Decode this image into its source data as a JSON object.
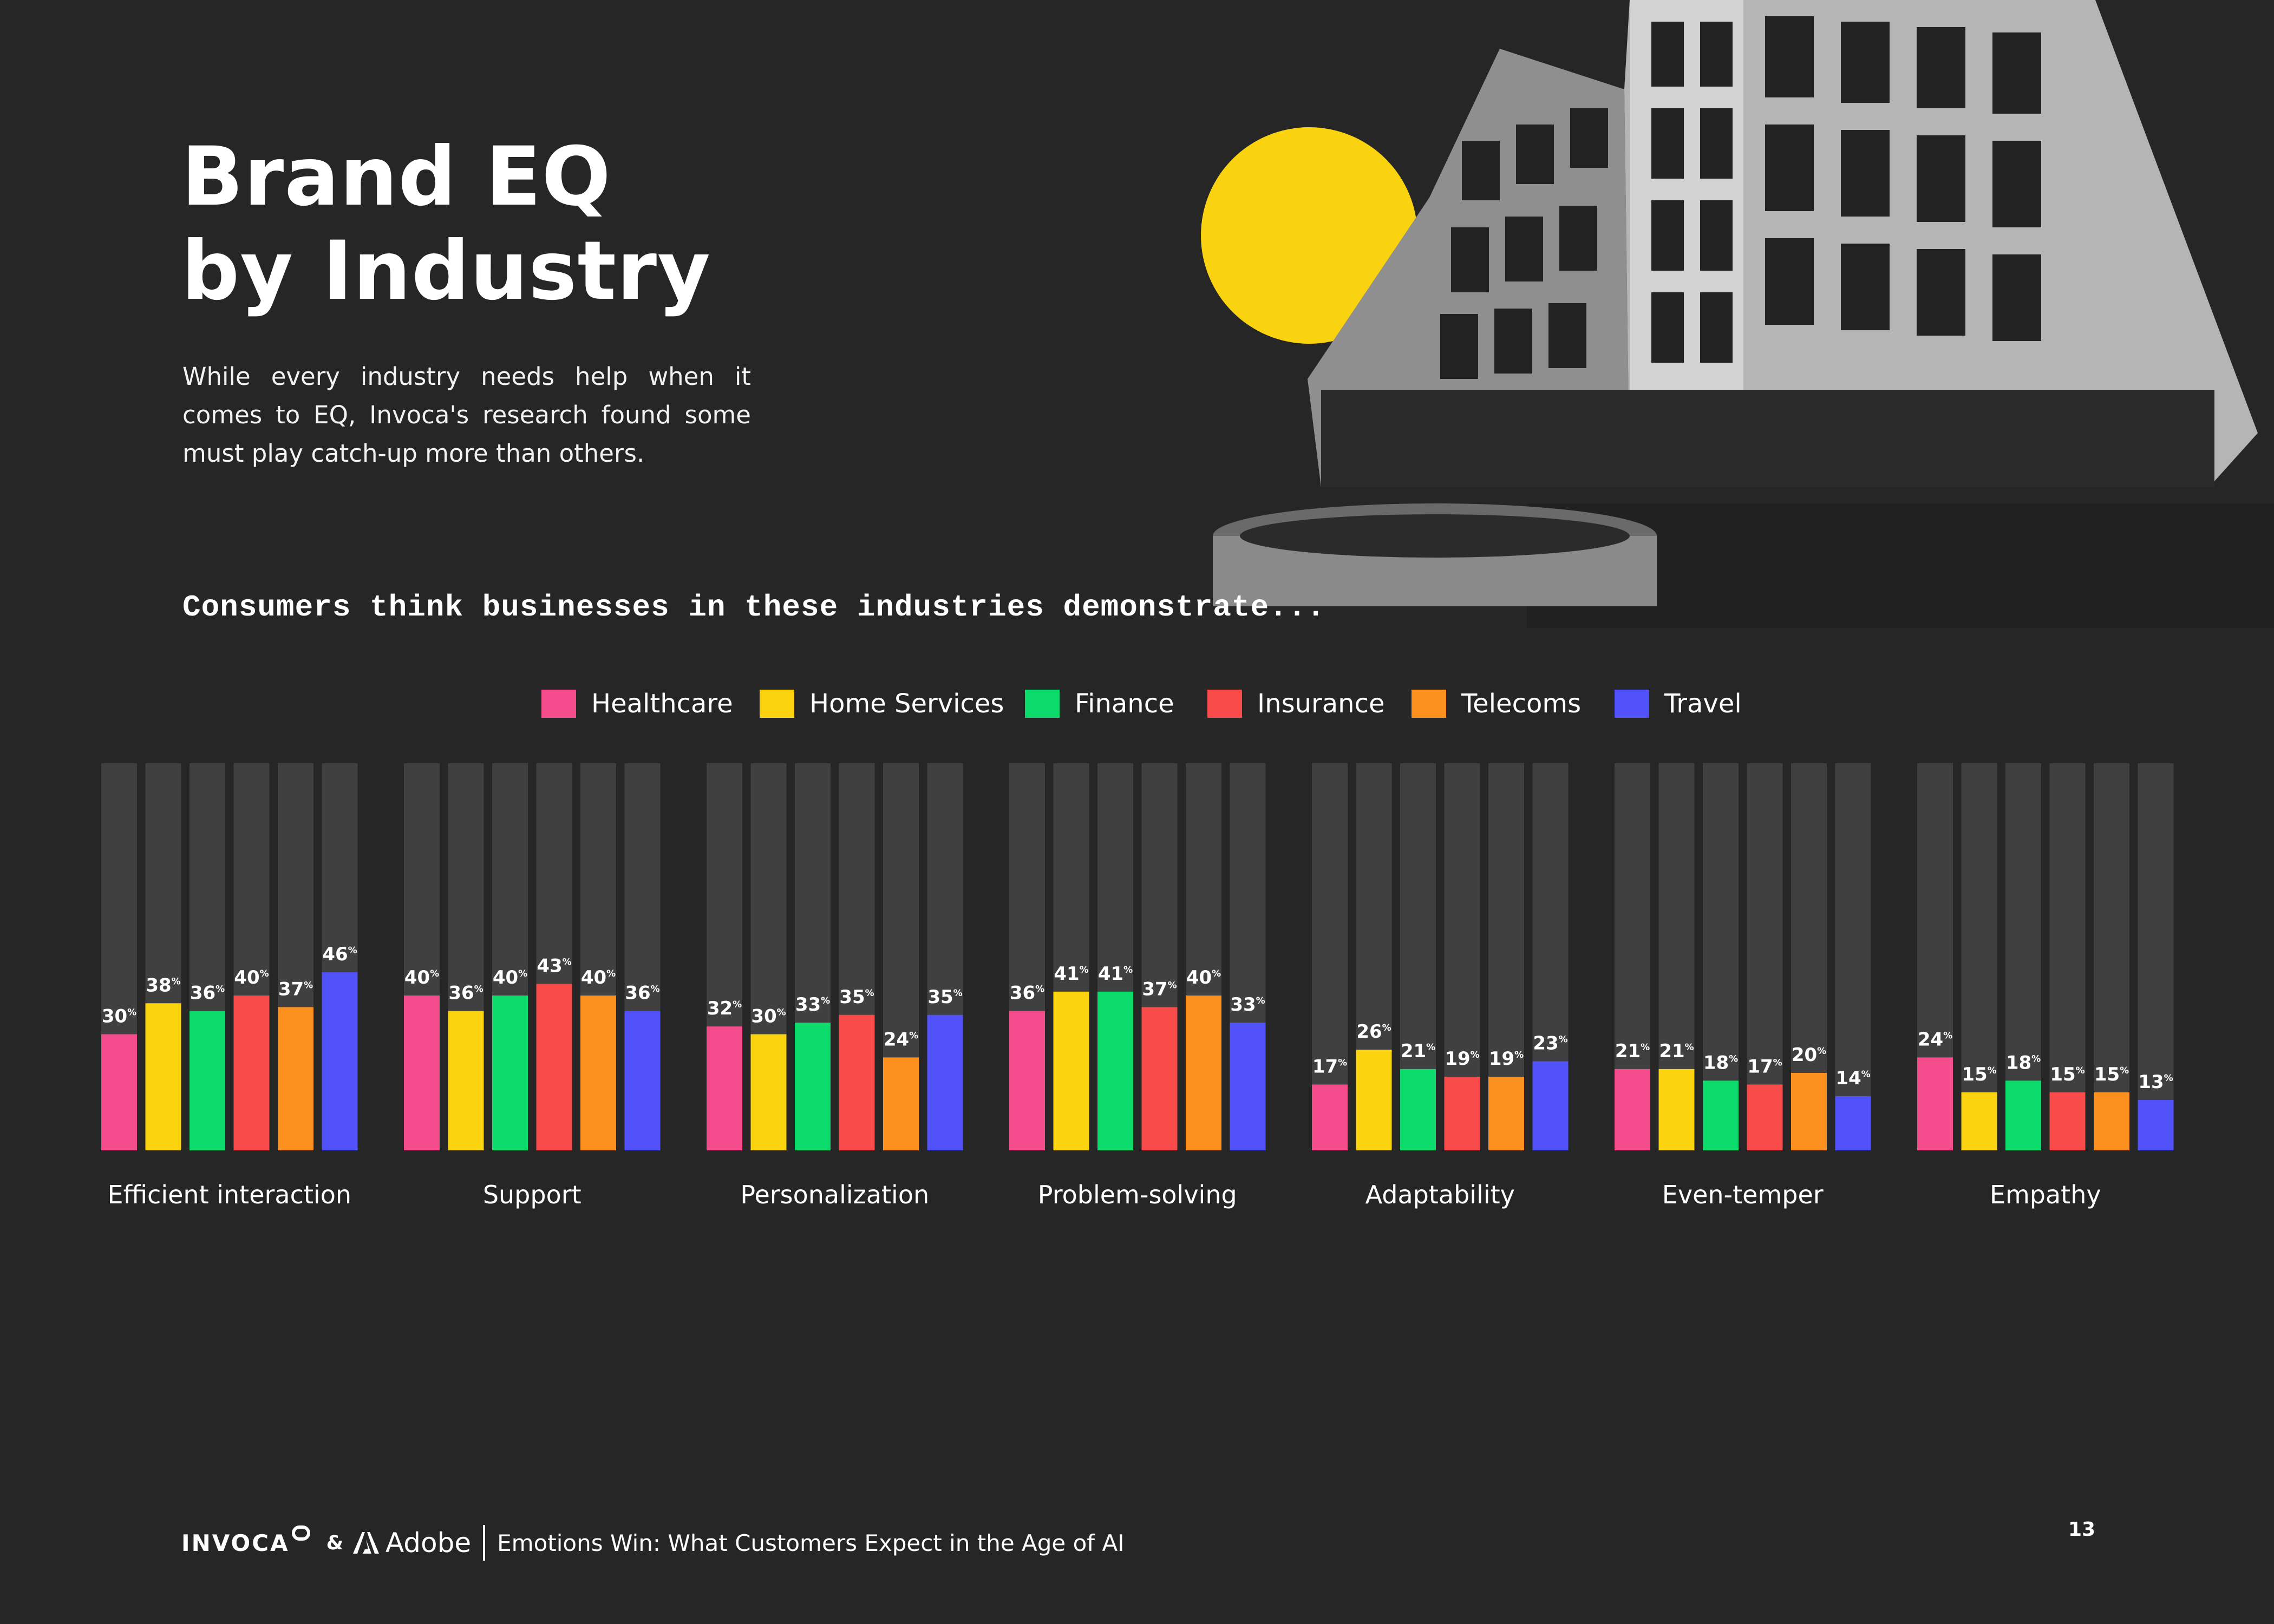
{
  "header": {
    "title_line1": "Brand EQ",
    "title_line2": "by Industry",
    "intro": "While every industry needs help when it comes to EQ, Invoca's research found some must play catch-up more than others.",
    "subheading": "Consumers think businesses in these industries demonstrate..."
  },
  "chart_data": {
    "type": "bar",
    "title": "Consumers think businesses in these industries demonstrate...",
    "xlabel": "",
    "ylabel": "",
    "ylim": [
      0,
      100
    ],
    "value_suffix": "%",
    "legend_position": "top-center",
    "grid": false,
    "categories": [
      "Efficient interaction",
      "Support",
      "Personalization",
      "Problem-solving",
      "Adaptability",
      "Even-temper",
      "Empathy"
    ],
    "series": [
      {
        "name": "Healthcare",
        "color": "#F54C8E",
        "values": [
          30,
          40,
          32,
          36,
          17,
          21,
          24
        ]
      },
      {
        "name": "Home Services",
        "color": "#FCD30F",
        "values": [
          38,
          36,
          30,
          41,
          26,
          21,
          15
        ]
      },
      {
        "name": "Finance",
        "color": "#0ADB6B",
        "values": [
          36,
          40,
          33,
          41,
          21,
          18,
          18
        ]
      },
      {
        "name": "Insurance",
        "color": "#FA4B4B",
        "values": [
          40,
          43,
          35,
          37,
          19,
          17,
          15
        ]
      },
      {
        "name": "Telecoms",
        "color": "#FD9120",
        "values": [
          37,
          40,
          24,
          40,
          19,
          20,
          15
        ]
      },
      {
        "name": "Travel",
        "color": "#5252FA",
        "values": [
          46,
          36,
          35,
          33,
          23,
          14,
          13
        ]
      }
    ]
  },
  "colors": {
    "background": "#262626",
    "track": "#404040",
    "accent_yellow": "#F9D30F"
  },
  "footer": {
    "brand_invoca": "INVOCA",
    "ampersand": "&",
    "brand_adobe": "Adobe",
    "document_title": "Emotions Win: What Customers Expect in the Age of AI",
    "page_number": "13"
  }
}
